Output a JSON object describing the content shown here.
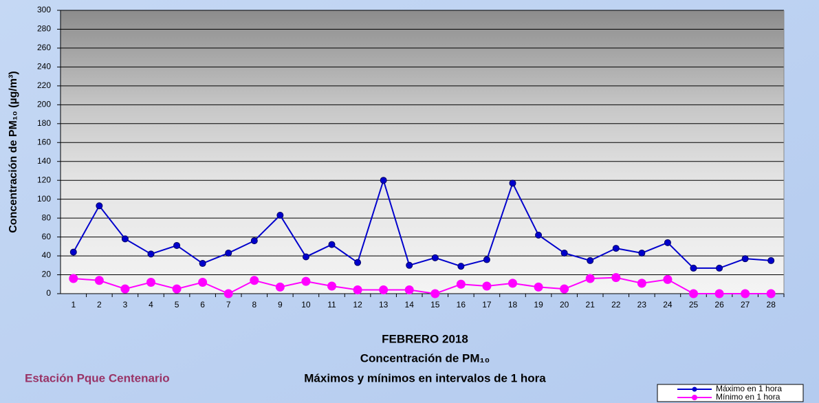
{
  "chart_data": {
    "type": "line",
    "title": [
      "FEBRERO 2018",
      "Concentración de PM₁₀",
      "Máximos y mínimos en intervalos de 1 hora"
    ],
    "annotation": "Estación Pque Centenario",
    "y_label": "Concentración de PM₁₀ (µg/m³)",
    "categories": [
      "1",
      "2",
      "3",
      "4",
      "5",
      "6",
      "7",
      "8",
      "9",
      "10",
      "11",
      "12",
      "13",
      "14",
      "15",
      "16",
      "17",
      "18",
      "19",
      "20",
      "21",
      "22",
      "23",
      "24",
      "25",
      "26",
      "27",
      "28"
    ],
    "series": [
      {
        "name": "Máximo en 1 hora",
        "color": "#0000cc",
        "values": [
          44,
          93,
          58,
          42,
          51,
          32,
          43,
          56,
          83,
          39,
          52,
          33,
          120,
          30,
          38,
          29,
          36,
          117,
          62,
          43,
          35,
          48,
          43,
          54,
          27,
          27,
          37,
          35
        ]
      },
      {
        "name": "Mínimo en 1 hora",
        "color": "#ff00ff",
        "values": [
          16,
          14,
          5,
          12,
          5,
          12,
          0,
          14,
          7,
          13,
          8,
          4,
          4,
          4,
          0,
          10,
          8,
          11,
          7,
          5,
          16,
          17,
          11,
          15,
          0,
          0,
          0,
          0
        ]
      }
    ],
    "ylim": [
      0,
      300
    ],
    "yticks": [
      0,
      20,
      40,
      60,
      80,
      100,
      120,
      140,
      160,
      180,
      200,
      220,
      240,
      260,
      280,
      300
    ],
    "grid": true,
    "legend": "lower-right"
  }
}
